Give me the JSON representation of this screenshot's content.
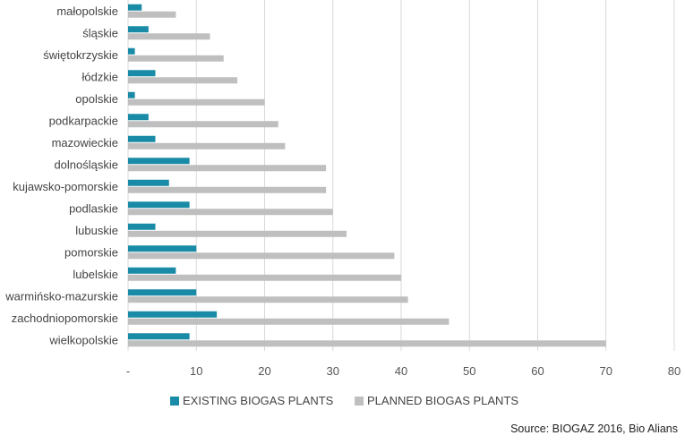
{
  "chart_data": {
    "type": "bar",
    "orientation": "horizontal",
    "categories": [
      "małopolskie",
      "śląskie",
      "świętokrzyskie",
      "łódzkie",
      "opolskie",
      "podkarpackie",
      "mazowieckie",
      "dolnośląskie",
      "kujawsko-pomorskie",
      "podlaskie",
      "lubuskie",
      "pomorskie",
      "lubelskie",
      "warmińsko-mazurskie",
      "zachodniopomorskie",
      "wielkopolskie"
    ],
    "series": [
      {
        "name": "EXISTING BIOGAS PLANTS",
        "color": "#1a8ba6",
        "values": [
          2,
          3,
          1,
          4,
          1,
          3,
          4,
          9,
          6,
          9,
          4,
          10,
          7,
          10,
          13,
          9
        ]
      },
      {
        "name": "PLANNED BIOGAS PLANTS",
        "color": "#bfbfbf",
        "values": [
          7,
          12,
          14,
          16,
          20,
          22,
          23,
          29,
          29,
          30,
          32,
          39,
          40,
          41,
          47,
          70
        ]
      }
    ],
    "xticks": [
      "-",
      "10",
      "20",
      "30",
      "40",
      "50",
      "60",
      "70",
      "80"
    ],
    "xlim": [
      0,
      80
    ],
    "grid": true,
    "legend_position": "bottom"
  },
  "source": "Source: BIOGAZ 2016, Bio Alians"
}
